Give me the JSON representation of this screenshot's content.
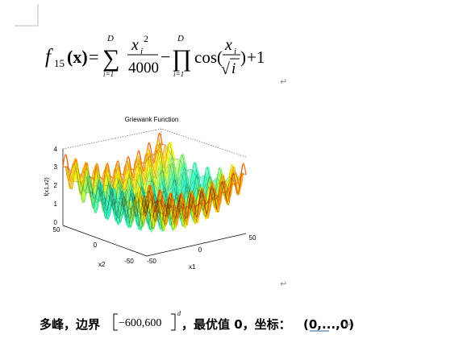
{
  "formula": {
    "f": "f",
    "index": "15",
    "arg": "(x)",
    "eq": "=",
    "sum": "∑",
    "sum_upper": "D",
    "sum_lower": "i=1",
    "num_x": "x",
    "num_sub": "i",
    "num_sup": "2",
    "den": "4000",
    "minus": "−",
    "prod": "∏",
    "prod_upper": "D",
    "prod_lower": "i=1",
    "cos": "cos(",
    "cos_x": "x",
    "cos_sub": "i",
    "sqrt": "√",
    "sqrt_i": "i",
    "close": ")",
    "plus": "+1"
  },
  "paragraph_mark": "↵",
  "plot": {
    "title": "Griewank Function",
    "z_label": "f(x1,x2)",
    "x1_label": "x1",
    "x2_label": "x2",
    "z_ticks": [
      "0",
      "1",
      "2",
      "3",
      "4"
    ],
    "x2_ticks": [
      "50",
      "0",
      "-50"
    ],
    "x1_ticks": [
      "-50",
      "0",
      "50"
    ]
  },
  "caption": {
    "text1": "多峰，边界",
    "bound": "−600,600",
    "bound_sup": "d",
    "text2": "，最优值 0，坐标：",
    "coords": "(0,...,0)"
  }
}
